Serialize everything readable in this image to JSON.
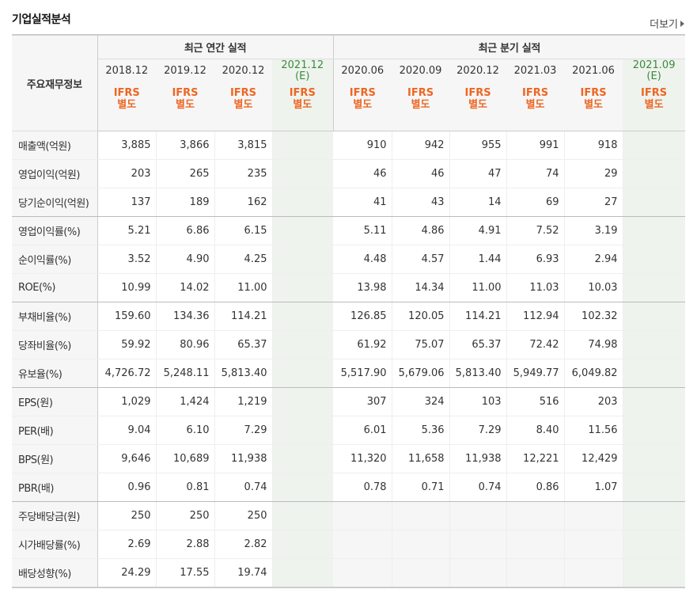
{
  "header": {
    "title": "기업실적분석",
    "more_label": "더보기"
  },
  "table": {
    "corner_label": "주요재무정보",
    "annual_group": "최근 연간 실적",
    "quarter_group": "최근 분기 실적",
    "annual_periods": [
      "2018.12",
      "2019.12",
      "2020.12"
    ],
    "annual_estimate": {
      "date": "2021.12",
      "tag": "(E)"
    },
    "quarter_periods": [
      "2020.06",
      "2020.09",
      "2020.12",
      "2021.03",
      "2021.06"
    ],
    "quarter_estimate": {
      "date": "2021.09",
      "tag": "(E)"
    },
    "ifrs": {
      "line1": "IFRS",
      "line2": "별도"
    },
    "rows": [
      {
        "label": "매출액(억원)",
        "annual": [
          "3,885",
          "3,866",
          "3,815"
        ],
        "quarter": [
          "910",
          "942",
          "955",
          "991",
          "918"
        ]
      },
      {
        "label": "영업이익(억원)",
        "annual": [
          "203",
          "265",
          "235"
        ],
        "quarter": [
          "46",
          "46",
          "47",
          "74",
          "29"
        ]
      },
      {
        "label": "당기순이익(억원)",
        "annual": [
          "137",
          "189",
          "162"
        ],
        "quarter": [
          "41",
          "43",
          "14",
          "69",
          "27"
        ]
      },
      {
        "label": "영업이익률(%)",
        "annual": [
          "5.21",
          "6.86",
          "6.15"
        ],
        "quarter": [
          "5.11",
          "4.86",
          "4.91",
          "7.52",
          "3.19"
        ]
      },
      {
        "label": "순이익률(%)",
        "annual": [
          "3.52",
          "4.90",
          "4.25"
        ],
        "quarter": [
          "4.48",
          "4.57",
          "1.44",
          "6.93",
          "2.94"
        ]
      },
      {
        "label": "ROE(%)",
        "annual": [
          "10.99",
          "14.02",
          "11.00"
        ],
        "quarter": [
          "13.98",
          "14.34",
          "11.00",
          "11.03",
          "10.03"
        ]
      },
      {
        "label": "부채비율(%)",
        "annual": [
          "159.60",
          "134.36",
          "114.21"
        ],
        "quarter": [
          "126.85",
          "120.05",
          "114.21",
          "112.94",
          "102.32"
        ]
      },
      {
        "label": "당좌비율(%)",
        "annual": [
          "59.92",
          "80.96",
          "65.37"
        ],
        "quarter": [
          "61.92",
          "75.07",
          "65.37",
          "72.42",
          "74.98"
        ]
      },
      {
        "label": "유보율(%)",
        "annual": [
          "4,726.72",
          "5,248.11",
          "5,813.40"
        ],
        "quarter": [
          "5,517.90",
          "5,679.06",
          "5,813.40",
          "5,949.77",
          "6,049.82"
        ]
      },
      {
        "label": "EPS(원)",
        "annual": [
          "1,029",
          "1,424",
          "1,219"
        ],
        "quarter": [
          "307",
          "324",
          "103",
          "516",
          "203"
        ]
      },
      {
        "label": "PER(배)",
        "annual": [
          "9.04",
          "6.10",
          "7.29"
        ],
        "quarter": [
          "6.01",
          "5.36",
          "7.29",
          "8.40",
          "11.56"
        ]
      },
      {
        "label": "BPS(원)",
        "annual": [
          "9,646",
          "10,689",
          "11,938"
        ],
        "quarter": [
          "11,320",
          "11,658",
          "11,938",
          "12,221",
          "12,429"
        ]
      },
      {
        "label": "PBR(배)",
        "annual": [
          "0.96",
          "0.81",
          "0.74"
        ],
        "quarter": [
          "0.78",
          "0.71",
          "0.74",
          "0.86",
          "1.07"
        ]
      },
      {
        "label": "주당배당금(원)",
        "annual": [
          "250",
          "250",
          "250"
        ],
        "quarter": [
          "",
          "",
          "",
          "",
          ""
        ]
      },
      {
        "label": "시가배당률(%)",
        "annual": [
          "2.69",
          "2.88",
          "2.82"
        ],
        "quarter": [
          "",
          "",
          "",
          "",
          ""
        ]
      },
      {
        "label": "배당성향(%)",
        "annual": [
          "24.29",
          "17.55",
          "19.74"
        ],
        "quarter": [
          "",
          "",
          "",
          "",
          ""
        ]
      }
    ]
  },
  "colors": {
    "ifrs_orange": "#ee6622",
    "estimate_green": "#3b8a3b",
    "estimate_bg": "#eef3ee"
  }
}
